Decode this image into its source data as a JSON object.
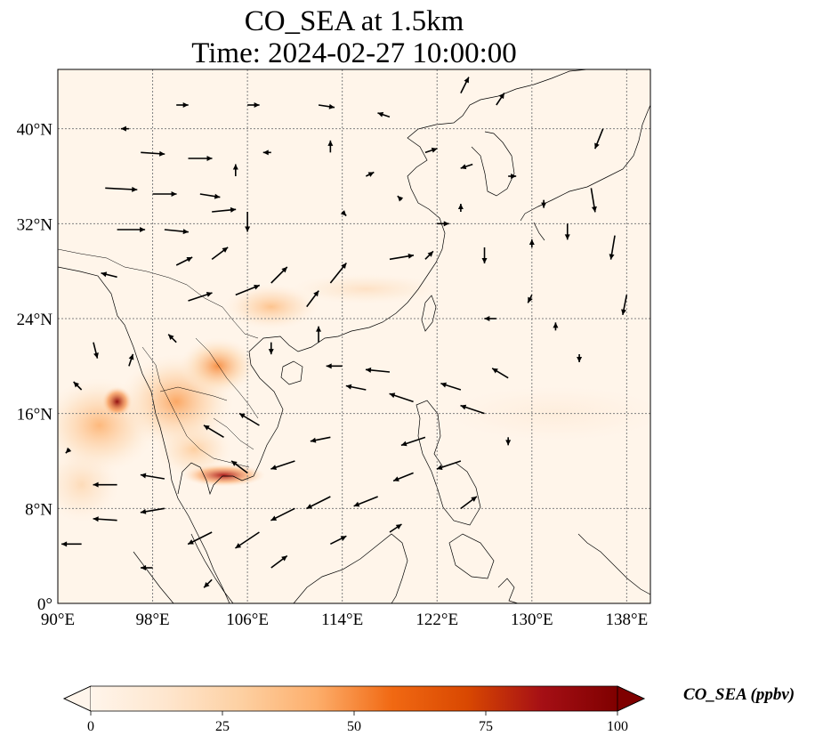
{
  "title": {
    "line1": "CO_SEA at 1.5km",
    "line2": "Time: 2024-02-27 10:00:00"
  },
  "map": {
    "projection": "PlateCarree",
    "lon_range": [
      90,
      140
    ],
    "lat_range": [
      0,
      45
    ],
    "lon_ticks": [
      {
        "value": 90,
        "label": "90°E"
      },
      {
        "value": 98,
        "label": "98°E"
      },
      {
        "value": 106,
        "label": "106°E"
      },
      {
        "value": 114,
        "label": "114°E"
      },
      {
        "value": 122,
        "label": "122°E"
      },
      {
        "value": 130,
        "label": "130°E"
      },
      {
        "value": 138,
        "label": "138°E"
      }
    ],
    "lat_ticks": [
      {
        "value": 0,
        "label": "0°"
      },
      {
        "value": 8,
        "label": "8°N"
      },
      {
        "value": 16,
        "label": "16°N"
      },
      {
        "value": 24,
        "label": "24°N"
      },
      {
        "value": 32,
        "label": "32°N"
      },
      {
        "value": 40,
        "label": "40°N"
      }
    ],
    "gridlines": true,
    "background_color": "#fff5ea",
    "hotspots": [
      {
        "lon": 95.0,
        "lat": 17.0,
        "sigma_lon": 0.8,
        "sigma_lat": 0.8,
        "value": 95
      },
      {
        "lon": 104.0,
        "lat": 10.8,
        "sigma_lon": 2.2,
        "sigma_lat": 0.6,
        "value": 85
      },
      {
        "lon": 93.5,
        "lat": 15.0,
        "sigma_lon": 3.0,
        "sigma_lat": 2.5,
        "value": 40
      },
      {
        "lon": 100.0,
        "lat": 17.0,
        "sigma_lon": 3.0,
        "sigma_lat": 2.5,
        "value": 45
      },
      {
        "lon": 103.5,
        "lat": 20.0,
        "sigma_lon": 2.0,
        "sigma_lat": 1.5,
        "value": 50
      },
      {
        "lon": 108.0,
        "lat": 25.0,
        "sigma_lon": 2.5,
        "sigma_lat": 1.2,
        "value": 35
      },
      {
        "lon": 116.0,
        "lat": 26.5,
        "sigma_lon": 4.0,
        "sigma_lat": 0.8,
        "value": 18
      },
      {
        "lon": 101.5,
        "lat": 13.0,
        "sigma_lon": 2.0,
        "sigma_lat": 1.5,
        "value": 30
      },
      {
        "lon": 92.0,
        "lat": 10.0,
        "sigma_lon": 2.0,
        "sigma_lat": 2.0,
        "value": 22
      },
      {
        "lon": 132.0,
        "lat": 16.0,
        "sigma_lon": 6.0,
        "sigma_lat": 1.5,
        "value": 8
      }
    ],
    "wind_vectors": [
      [
        95,
        31.5,
        3.5,
        0
      ],
      [
        99,
        31.5,
        3,
        -0.3
      ],
      [
        103,
        33,
        3,
        0.3
      ],
      [
        94,
        35,
        4,
        -0.2
      ],
      [
        98,
        34.5,
        3,
        0
      ],
      [
        102,
        34.5,
        2.5,
        -0.4
      ],
      [
        97,
        38,
        3,
        -0.2
      ],
      [
        101,
        37.5,
        3,
        0
      ],
      [
        95,
        27.5,
        -2,
        0.5
      ],
      [
        100,
        28.5,
        2,
        1
      ],
      [
        103,
        29,
        2,
        1.5
      ],
      [
        101,
        25.5,
        3,
        1
      ],
      [
        105,
        26,
        3,
        1.2
      ],
      [
        108,
        27,
        2,
        2
      ],
      [
        111,
        25,
        1.5,
        2
      ],
      [
        113,
        27,
        2,
        2.5
      ],
      [
        118,
        29,
        3,
        0.5
      ],
      [
        121,
        29,
        1,
        1
      ],
      [
        122,
        32,
        1.5,
        0
      ],
      [
        108,
        22,
        0,
        -1.5
      ],
      [
        112,
        22,
        0,
        2
      ],
      [
        114,
        20,
        -2,
        0
      ],
      [
        118,
        19.5,
        -3,
        0.3
      ],
      [
        116,
        18,
        -2.5,
        0.5
      ],
      [
        120,
        17,
        -3,
        1
      ],
      [
        124,
        18,
        -2.5,
        0.8
      ],
      [
        126,
        16,
        -3,
        1
      ],
      [
        128,
        19,
        -2,
        1.2
      ],
      [
        121,
        14,
        -3,
        -1
      ],
      [
        124,
        12,
        -3,
        -1
      ],
      [
        120,
        11,
        -2.5,
        -1
      ],
      [
        117,
        9,
        -3,
        -1.2
      ],
      [
        113,
        9,
        -3,
        -1.5
      ],
      [
        110,
        8,
        -3,
        -1.5
      ],
      [
        107,
        6,
        -3,
        -2
      ],
      [
        103,
        6,
        -3,
        -1.5
      ],
      [
        99,
        8,
        -3,
        -0.5
      ],
      [
        95,
        7,
        -3,
        0.2
      ],
      [
        92,
        5,
        -2.5,
        0
      ],
      [
        95,
        10,
        -3,
        0
      ],
      [
        99,
        10.5,
        -3,
        0.5
      ],
      [
        106,
        11,
        -2,
        1.5
      ],
      [
        104,
        14,
        -2.5,
        1.5
      ],
      [
        107,
        15,
        -2.5,
        1.5
      ],
      [
        110,
        12,
        -3,
        -1
      ],
      [
        113,
        14,
        -2.5,
        -0.5
      ],
      [
        100,
        22,
        -1,
        1
      ],
      [
        96,
        20,
        0.5,
        1.5
      ],
      [
        93,
        22,
        0.5,
        -2
      ],
      [
        92,
        18,
        -1,
        1
      ],
      [
        91,
        13,
        -0.5,
        -0.5
      ],
      [
        126,
        30,
        0,
        -2
      ],
      [
        130,
        30,
        0,
        1
      ],
      [
        133,
        32,
        0,
        -2
      ],
      [
        135,
        35,
        0.5,
        -3
      ],
      [
        137,
        31,
        -0.5,
        -3
      ],
      [
        138,
        26,
        -0.5,
        -2.5
      ],
      [
        136,
        40,
        -1,
        -2.5
      ],
      [
        127,
        42,
        1,
        1.5
      ],
      [
        124,
        43,
        1,
        2
      ],
      [
        118,
        41,
        -1.5,
        0.5
      ],
      [
        112,
        42,
        2,
        -0.3
      ],
      [
        106,
        42,
        1.5,
        0
      ],
      [
        100,
        42,
        1.5,
        0
      ],
      [
        96,
        40,
        -1,
        0
      ],
      [
        113,
        38,
        0,
        1.5
      ],
      [
        116,
        36,
        1,
        0.5
      ],
      [
        121,
        38,
        1.5,
        0.5
      ],
      [
        125,
        37,
        -1.5,
        -0.5
      ],
      [
        128,
        36,
        1,
        0
      ],
      [
        131,
        34,
        0,
        -1
      ],
      [
        130,
        26,
        -0.5,
        -1
      ],
      [
        127,
        24,
        -1.5,
        0
      ],
      [
        132,
        23,
        0,
        1
      ],
      [
        134,
        21,
        0,
        -1
      ],
      [
        128,
        14,
        0,
        -1
      ],
      [
        124,
        8,
        2,
        1.5
      ],
      [
        118,
        6,
        1.5,
        1
      ],
      [
        113,
        5,
        2,
        1
      ],
      [
        108,
        3,
        2,
        1.5
      ],
      [
        103,
        2,
        -1,
        -1
      ],
      [
        98,
        3,
        -1.5,
        0
      ],
      [
        106,
        33,
        0,
        -2.5
      ],
      [
        105,
        36,
        0,
        1.5
      ],
      [
        108,
        38,
        -1,
        0
      ],
      [
        114,
        33,
        0.5,
        -0.5
      ],
      [
        119,
        34,
        -0.5,
        0.5
      ],
      [
        124,
        33,
        0,
        1
      ]
    ]
  },
  "colorbar": {
    "label": "CO_SEA (ppbv)",
    "min": 0,
    "max": 100,
    "extend": "both",
    "ticks": [
      {
        "value": 0,
        "label": "0"
      },
      {
        "value": 25,
        "label": "25"
      },
      {
        "value": 50,
        "label": "50"
      },
      {
        "value": 75,
        "label": "75"
      },
      {
        "value": 100,
        "label": "100"
      }
    ],
    "colormap": [
      "#fff5eb",
      "#fee6ce",
      "#fdd0a2",
      "#fdae6b",
      "#f16913",
      "#d94801",
      "#a50f15",
      "#7f0000"
    ]
  }
}
